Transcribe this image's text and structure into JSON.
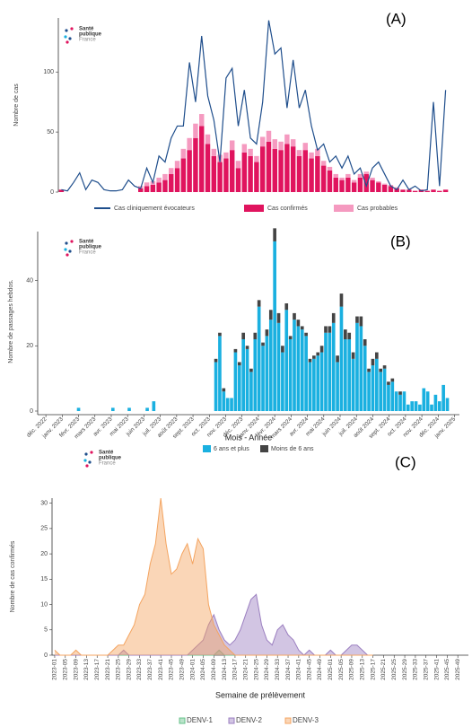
{
  "chart_data": [
    {
      "type": "bar",
      "label": "(A)",
      "logo": [
        "Santé",
        "publique",
        "France"
      ],
      "y_label": "Nombre de cas",
      "categories": [
        null,
        null,
        null,
        null,
        null,
        null,
        null,
        null,
        null,
        null,
        null,
        null,
        null,
        null,
        null,
        null,
        null,
        null,
        null,
        null,
        null,
        null,
        null,
        null,
        null,
        null,
        null,
        null,
        null,
        null,
        null,
        null,
        null,
        null,
        null,
        null,
        null,
        null,
        null,
        null,
        null,
        null,
        null,
        null,
        null,
        null,
        null,
        null,
        null,
        null,
        null,
        null,
        null,
        null,
        null,
        null,
        null,
        null,
        null,
        null,
        null,
        null,
        null,
        null
      ],
      "ylim": [
        0,
        145
      ],
      "yticks": [
        0,
        50,
        100
      ],
      "grid": false,
      "series": [
        {
          "name": "Cas cliniquement évocateurs",
          "type": "line",
          "color": "#1f4e8c",
          "values": [
            2,
            1,
            8,
            16,
            2,
            10,
            8,
            2,
            1,
            1,
            2,
            10,
            5,
            3,
            20,
            8,
            30,
            25,
            45,
            55,
            55,
            108,
            75,
            130,
            80,
            60,
            25,
            95,
            103,
            55,
            85,
            45,
            40,
            75,
            143,
            115,
            120,
            70,
            110,
            70,
            85,
            55,
            35,
            40,
            25,
            30,
            20,
            30,
            15,
            20,
            5,
            20,
            25,
            15,
            5,
            2,
            10,
            2,
            5,
            1,
            2,
            75,
            5,
            85
          ]
        },
        {
          "name": "Cas confirmés",
          "type": "bar",
          "color": "#e0145e",
          "values": [
            2,
            0,
            0,
            0,
            0,
            0,
            0,
            0,
            0,
            0,
            0,
            0,
            0,
            3,
            5,
            6,
            8,
            10,
            15,
            20,
            28,
            35,
            45,
            55,
            40,
            30,
            25,
            28,
            35,
            20,
            33,
            30,
            25,
            38,
            42,
            36,
            35,
            40,
            38,
            30,
            35,
            28,
            30,
            22,
            18,
            12,
            10,
            12,
            8,
            12,
            15,
            10,
            8,
            6,
            5,
            3,
            2,
            2,
            1,
            2,
            1,
            2,
            1,
            2
          ]
        },
        {
          "name": "Cas probables",
          "type": "bar",
          "color": "#f59ac0",
          "values": [
            0,
            0,
            0,
            0,
            0,
            0,
            0,
            0,
            0,
            0,
            0,
            0,
            0,
            2,
            3,
            3,
            4,
            5,
            5,
            6,
            8,
            10,
            12,
            10,
            8,
            6,
            6,
            5,
            8,
            6,
            7,
            6,
            5,
            8,
            9,
            8,
            7,
            8,
            6,
            5,
            6,
            5,
            6,
            4,
            3,
            3,
            2,
            3,
            2,
            3,
            2,
            2,
            1,
            1,
            1,
            1,
            0,
            0,
            0,
            0,
            0,
            0,
            0,
            0
          ]
        }
      ]
    },
    {
      "type": "bar",
      "label": "(B)",
      "logo": [
        "Santé",
        "publique",
        "France"
      ],
      "y_label": "Nombre de passages hebdos.",
      "x_label": "Mois - Année",
      "x": [
        2,
        4.1,
        5.1,
        6.2,
        6.6,
        10.4,
        10.64,
        10.88,
        11.12,
        11.36,
        11.6,
        11.84,
        12.08,
        12.32,
        12.56,
        12.8,
        13.04,
        13.28,
        13.52,
        13.76,
        14,
        14.24,
        14.48,
        14.72,
        14.96,
        15.2,
        15.44,
        15.68,
        15.92,
        16.16,
        16.4,
        16.64,
        16.88,
        17.12,
        17.36,
        17.6,
        17.84,
        18.08,
        18.32,
        18.56,
        18.8,
        19.04,
        19.28,
        19.52,
        19.76,
        20,
        20.24,
        20.48,
        20.72,
        20.96,
        21.2,
        21.44,
        21.68,
        21.92,
        22.16,
        22.4,
        22.64,
        22.88,
        23.12,
        23.36,
        23.6,
        23.84,
        24.08,
        24.32,
        24.56
      ],
      "xlim": [
        -0.5,
        25.3
      ],
      "xticks": [
        {
          "value": 0,
          "label": "déc. 2022"
        },
        {
          "value": 1,
          "label": "janv. 2023"
        },
        {
          "value": 2,
          "label": "févr. 2023"
        },
        {
          "value": 3,
          "label": "mars 2023"
        },
        {
          "value": 4,
          "label": "avr. 2023"
        },
        {
          "value": 5,
          "label": "mai 2023"
        },
        {
          "value": 6,
          "label": "juin 2023"
        },
        {
          "value": 7,
          "label": "juil. 2023"
        },
        {
          "value": 8,
          "label": "août 2023"
        },
        {
          "value": 9,
          "label": "sept. 2023"
        },
        {
          "value": 10,
          "label": "oct. 2023"
        },
        {
          "value": 11,
          "label": "nov. 2023"
        },
        {
          "value": 12,
          "label": "déc. 2023"
        },
        {
          "value": 13,
          "label": "janv. 2024"
        },
        {
          "value": 14,
          "label": "févr. 2024"
        },
        {
          "value": 15,
          "label": "mars 2024"
        },
        {
          "value": 16,
          "label": "avr. 2024"
        },
        {
          "value": 17,
          "label": "mai 2024"
        },
        {
          "value": 18,
          "label": "juin 2024"
        },
        {
          "value": 19,
          "label": "juil. 2024"
        },
        {
          "value": 20,
          "label": "août 2024"
        },
        {
          "value": 21,
          "label": "sept. 2024"
        },
        {
          "value": 22,
          "label": "oct. 2024"
        },
        {
          "value": 23,
          "label": "nov. 2024"
        },
        {
          "value": 24,
          "label": "déc. 2024"
        },
        {
          "value": 25,
          "label": "janv. 2025"
        }
      ],
      "ylim": [
        0,
        55
      ],
      "yticks": [
        0,
        20,
        40
      ],
      "grid": false,
      "series": [
        {
          "name": "6 ans et plus",
          "type": "bar",
          "color": "#1ab0e0",
          "values": [
            1,
            1,
            1,
            1,
            3,
            15,
            23,
            6,
            4,
            4,
            18,
            14,
            22,
            19,
            12,
            22,
            32,
            20,
            23,
            28,
            52,
            27,
            18,
            31,
            22,
            28,
            26,
            25,
            23,
            15,
            16,
            17,
            18,
            24,
            24,
            27,
            15,
            32,
            22,
            22,
            16,
            27,
            26,
            20,
            12,
            14,
            16,
            12,
            13,
            8,
            9,
            6,
            5,
            6,
            2,
            3,
            3,
            2,
            7,
            6,
            2,
            5,
            3,
            8,
            4
          ]
        },
        {
          "name": "Moins de 6 ans",
          "type": "bar",
          "color": "#444444",
          "values": [
            0,
            0,
            0,
            0,
            0,
            1,
            1,
            1,
            0,
            0,
            1,
            1,
            2,
            1,
            1,
            2,
            2,
            1,
            2,
            3,
            4,
            3,
            2,
            2,
            1,
            2,
            2,
            1,
            1,
            1,
            1,
            1,
            2,
            2,
            2,
            3,
            2,
            4,
            3,
            2,
            2,
            2,
            3,
            2,
            1,
            2,
            2,
            1,
            1,
            1,
            1,
            0,
            1,
            0,
            0,
            0,
            0,
            0,
            0,
            0,
            0,
            0,
            0,
            0,
            0
          ]
        }
      ]
    },
    {
      "type": "area",
      "label": "(C)",
      "logo": [
        "Santé",
        "publique",
        "France"
      ],
      "y_label": "Nombre de cas confirmés",
      "x_label": "Semaine de prélèvement",
      "x": [
        0,
        2,
        4,
        6,
        8,
        10,
        12,
        14,
        16,
        18,
        20,
        22,
        24,
        26,
        28,
        30,
        32,
        34,
        36,
        38,
        40,
        42,
        44,
        46,
        48,
        50,
        52,
        54,
        56,
        58,
        60,
        62,
        64,
        66,
        68,
        70,
        72,
        74,
        76,
        78,
        80,
        82,
        84,
        86,
        88,
        90,
        92,
        94,
        96,
        98,
        100,
        102,
        104,
        106,
        108,
        110,
        112,
        114,
        116,
        118,
        120
      ],
      "xlim": [
        -1,
        156
      ],
      "xticks": [
        {
          "value": 0,
          "label": "2023-01"
        },
        {
          "value": 4,
          "label": "2023-05"
        },
        {
          "value": 8,
          "label": "2023-09"
        },
        {
          "value": 12,
          "label": "2023-13"
        },
        {
          "value": 16,
          "label": "2023-17"
        },
        {
          "value": 20,
          "label": "2023-21"
        },
        {
          "value": 24,
          "label": "2023-25"
        },
        {
          "value": 28,
          "label": "2023-29"
        },
        {
          "value": 32,
          "label": "2023-33"
        },
        {
          "value": 36,
          "label": "2023-37"
        },
        {
          "value": 40,
          "label": "2023-41"
        },
        {
          "value": 44,
          "label": "2023-45"
        },
        {
          "value": 48,
          "label": "2023-49"
        },
        {
          "value": 52,
          "label": "2024-01"
        },
        {
          "value": 56,
          "label": "2024-05"
        },
        {
          "value": 60,
          "label": "2024-09"
        },
        {
          "value": 64,
          "label": "2024-13"
        },
        {
          "value": 68,
          "label": "2024-17"
        },
        {
          "value": 72,
          "label": "2024-21"
        },
        {
          "value": 76,
          "label": "2024-25"
        },
        {
          "value": 80,
          "label": "2024-29"
        },
        {
          "value": 84,
          "label": "2024-33"
        },
        {
          "value": 88,
          "label": "2024-37"
        },
        {
          "value": 92,
          "label": "2024-41"
        },
        {
          "value": 96,
          "label": "2024-45"
        },
        {
          "value": 100,
          "label": "2024-49"
        },
        {
          "value": 104,
          "label": "2025-01"
        },
        {
          "value": 108,
          "label": "2025-05"
        },
        {
          "value": 112,
          "label": "2025-09"
        },
        {
          "value": 116,
          "label": "2025-13"
        },
        {
          "value": 120,
          "label": "2025-17"
        },
        {
          "value": 124,
          "label": "2025-21"
        },
        {
          "value": 128,
          "label": "2025-25"
        },
        {
          "value": 132,
          "label": "2025-29"
        },
        {
          "value": 136,
          "label": "2025-33"
        },
        {
          "value": 140,
          "label": "2025-37"
        },
        {
          "value": 144,
          "label": "2025-41"
        },
        {
          "value": 148,
          "label": "2025-45"
        },
        {
          "value": 152,
          "label": "2025-49"
        }
      ],
      "ylim": [
        0,
        31
      ],
      "yticks": [
        0,
        5,
        10,
        15,
        20,
        25,
        30
      ],
      "grid": false,
      "series": [
        {
          "name": "DENV-1",
          "color": "#66c28a",
          "values": [
            0,
            0,
            0,
            0,
            0,
            0,
            0,
            0,
            0,
            0,
            0,
            0,
            0,
            0,
            0,
            0,
            0,
            0,
            0,
            0,
            0,
            0,
            0,
            0,
            0,
            0,
            0,
            0,
            0,
            0,
            0,
            1,
            0,
            0,
            0,
            0,
            0,
            0,
            0,
            0,
            0,
            0,
            0,
            0,
            0,
            0,
            0,
            0,
            0,
            0,
            0,
            0,
            0,
            0,
            0,
            0,
            0,
            0,
            0,
            0,
            0
          ]
        },
        {
          "name": "DENV-2",
          "color": "#9b7fc0",
          "values": [
            0,
            0,
            0,
            0,
            0,
            0,
            0,
            0,
            0,
            0,
            0,
            0,
            0,
            1,
            0,
            0,
            0,
            0,
            0,
            0,
            0,
            0,
            0,
            0,
            0,
            0,
            1,
            2,
            3,
            6,
            8,
            5,
            3,
            2,
            3,
            5,
            8,
            11,
            12,
            6,
            3,
            2,
            5,
            6,
            4,
            3,
            1,
            0,
            1,
            0,
            0,
            0,
            1,
            0,
            0,
            1,
            2,
            2,
            1,
            0,
            0
          ]
        },
        {
          "name": "DENV-3",
          "color": "#f4a460",
          "values": [
            1,
            0,
            0,
            0,
            1,
            0,
            0,
            0,
            0,
            0,
            0,
            1,
            2,
            2,
            4,
            6,
            10,
            12,
            18,
            22,
            31,
            22,
            16,
            17,
            20,
            22,
            18,
            23,
            21,
            10,
            6,
            4,
            2,
            1,
            0,
            0,
            0,
            0,
            0,
            0,
            0,
            0,
            0,
            0,
            0,
            0,
            0,
            0,
            0,
            0,
            0,
            0,
            0,
            0,
            0,
            0,
            0,
            0,
            0,
            0,
            0
          ]
        }
      ]
    }
  ]
}
